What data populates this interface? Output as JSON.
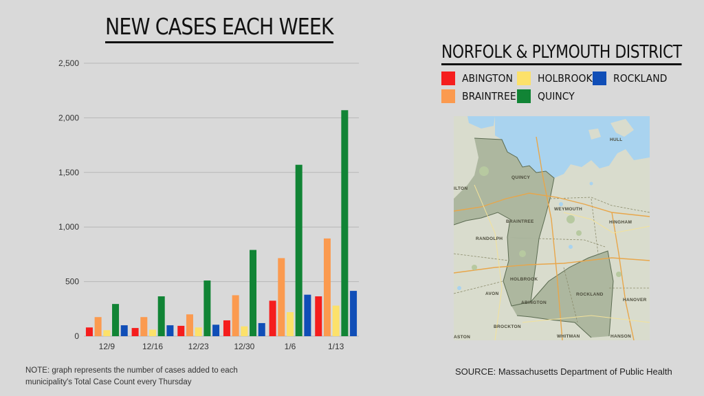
{
  "chart_data": {
    "type": "bar",
    "title": "NEW CASES EACH WEEK",
    "categories": [
      "12/9",
      "12/16",
      "12/23",
      "12/30",
      "1/6",
      "1/13"
    ],
    "series": [
      {
        "name": "ABINGTON",
        "color": "#f51d1d",
        "values": [
          80,
          75,
          95,
          145,
          325,
          365
        ]
      },
      {
        "name": "BRAINTREE",
        "color": "#fb9a4f",
        "values": [
          175,
          175,
          200,
          375,
          715,
          895
        ]
      },
      {
        "name": "HOLBROOK",
        "color": "#fce16a",
        "values": [
          55,
          60,
          80,
          90,
          220,
          280
        ]
      },
      {
        "name": "QUINCY",
        "color": "#118435",
        "values": [
          295,
          365,
          510,
          790,
          1570,
          2070
        ]
      },
      {
        "name": "ROCKLAND",
        "color": "#104eb7",
        "values": [
          100,
          100,
          105,
          120,
          380,
          415
        ]
      }
    ],
    "ylim": [
      0,
      2500
    ],
    "yticks": [
      0,
      500,
      1000,
      1500,
      2000,
      2500
    ],
    "ytick_labels": [
      "0",
      "500",
      "1,000",
      "1,500",
      "2,000",
      "2,500"
    ],
    "grid": true,
    "xlabel": "",
    "ylabel": ""
  },
  "note": "NOTE: graph represents the number of cases added to each municipality's Total Case Count every Thursday",
  "source": "SOURCE: Massachusetts Department of Public Health",
  "district": {
    "title": "NORFOLK & PLYMOUTH DISTRICT",
    "legend_order": [
      "ABINGTON",
      "HOLBROOK",
      "ROCKLAND",
      "BRAINTREE",
      "QUINCY"
    ]
  },
  "map": {
    "labels": [
      "QUINCY",
      "WEYMOUTH",
      "BRAINTREE",
      "HINGHAM",
      "RANDOLPH",
      "HOLBROOK",
      "AVON",
      "ABINGTON",
      "ROCKLAND",
      "HANOVER",
      "BROCKTON",
      "WHITMAN",
      "HANSON",
      "HULL",
      "ILTON",
      "ASTON"
    ]
  }
}
